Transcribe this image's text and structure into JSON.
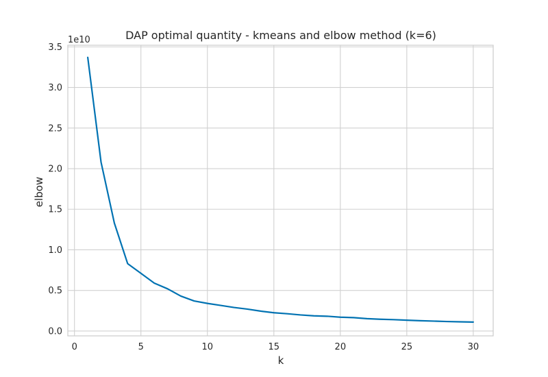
{
  "chart_data": {
    "type": "line",
    "title": "DAP optimal quantity - kmeans and elbow method (k=6)",
    "xlabel": "k",
    "ylabel": "elbow",
    "y_offset_label": "1e10",
    "xlim": [
      -0.5,
      31.5
    ],
    "ylim": [
      -0.06,
      3.52
    ],
    "y_scale_note": "values in units of 1e10",
    "x_ticks": [
      0,
      5,
      10,
      15,
      20,
      25,
      30
    ],
    "x_tick_labels": [
      "0",
      "5",
      "10",
      "15",
      "20",
      "25",
      "30"
    ],
    "y_ticks": [
      0.0,
      0.5,
      1.0,
      1.5,
      2.0,
      2.5,
      3.0,
      3.5
    ],
    "y_tick_labels": [
      "0.0",
      "0.5",
      "1.0",
      "1.5",
      "2.0",
      "2.5",
      "3.0",
      "3.5"
    ],
    "grid": true,
    "series": [
      {
        "color": "#0072B2",
        "x": [
          1,
          2,
          3,
          4,
          5,
          6,
          7,
          8,
          9,
          10,
          11,
          12,
          13,
          14,
          15,
          16,
          17,
          18,
          19,
          20,
          21,
          22,
          23,
          24,
          25,
          26,
          27,
          28,
          29,
          30
        ],
        "y": [
          3.37,
          2.08,
          1.33,
          0.83,
          0.71,
          0.59,
          0.52,
          0.43,
          0.37,
          0.34,
          0.315,
          0.29,
          0.27,
          0.245,
          0.225,
          0.213,
          0.198,
          0.187,
          0.182,
          0.17,
          0.165,
          0.152,
          0.145,
          0.14,
          0.133,
          0.127,
          0.122,
          0.117,
          0.113,
          0.11
        ]
      }
    ]
  }
}
